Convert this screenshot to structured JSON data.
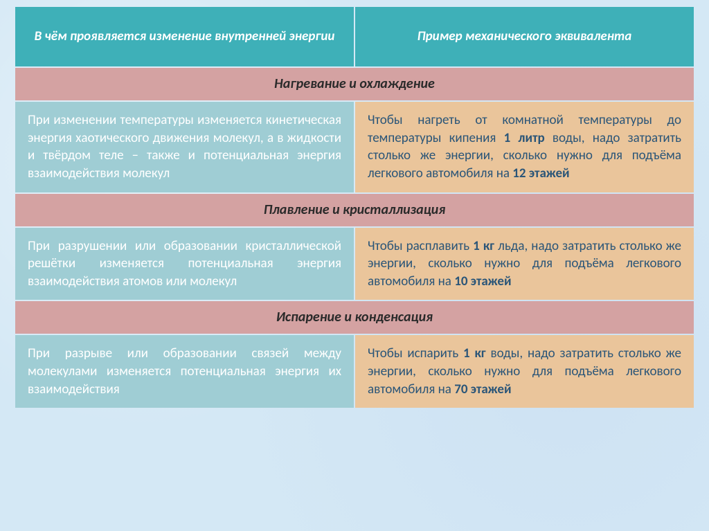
{
  "colors": {
    "header_bg": "#3eb0b8",
    "header_text": "#ffffff",
    "section_bg": "#d4a2a2",
    "section_text": "#2a2a2a",
    "left_bg": "#9fcdd4",
    "left_text": "#ffffff",
    "right_bg": "#eac59b",
    "right_text": "#2a5578",
    "page_bg": "#d4e8f5"
  },
  "table": {
    "header_left": "В чём проявляется изменение внутренней энергии",
    "header_right": "Пример механического эквивалента",
    "sections": [
      {
        "title": "Нагревание и охлаждение",
        "left": "При изменении температуры изменяется кинетическая энергия хаотического движения молекул, а в жидкости и твёрдом теле – также и потенциальная энергия взаимодействия молекул",
        "right_parts": [
          "Чтобы нагреть от комнатной температуры до температуры кипения ",
          "1 литр",
          " воды, надо затратить столько же энергии, сколько нужно для подъёма легкового автомобиля на ",
          "12 этажей"
        ]
      },
      {
        "title": "Плавление и кристаллизация",
        "left": "При разрушении или образовании кристаллической решётки изменяется потенциальная энергия взаимодействия атомов или молекул",
        "right_parts": [
          "Чтобы расплавить ",
          "1 кг",
          " льда, надо затратить столько же энергии, сколько нужно для подъёма легкового автомобиля на ",
          "10 этажей"
        ]
      },
      {
        "title": "Испарение и конденсация",
        "left": "При разрыве или образовании связей между молекулами изменяется потенциальная энергия их взаимодействия",
        "right_parts": [
          "Чтобы испарить ",
          "1 кг",
          " воды, надо затратить столько же энергии, сколько нужно для подъёма легкового автомобиля на ",
          "70 этажей"
        ]
      }
    ]
  }
}
